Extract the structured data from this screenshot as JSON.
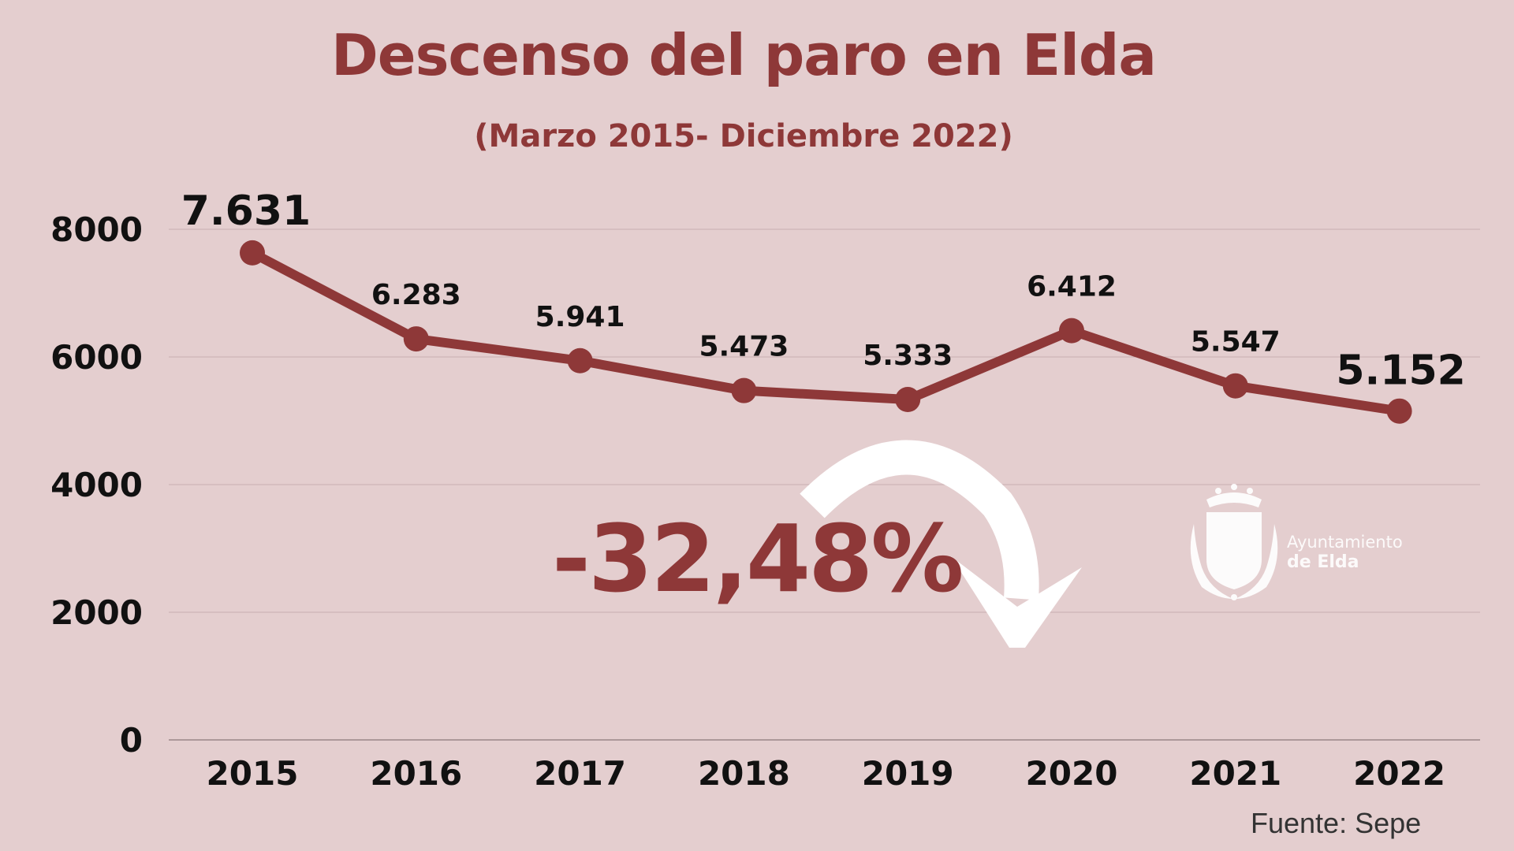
{
  "chart_data": {
    "type": "line",
    "title": "Descenso del paro en Elda",
    "subtitle": "(Marzo 2015- Diciembre 2022)",
    "categories": [
      "2015",
      "2016",
      "2017",
      "2018",
      "2019",
      "2020",
      "2021",
      "2022"
    ],
    "values": [
      7631,
      6283,
      5941,
      5473,
      5333,
      6412,
      5547,
      5152
    ],
    "data_labels": [
      "7.631",
      "6.283",
      "5.941",
      "5.473",
      "5.333",
      "6.412",
      "5.547",
      "5.152"
    ],
    "ylim": [
      0,
      8000
    ],
    "yticks": [
      0,
      2000,
      4000,
      6000,
      8000
    ],
    "grid": true,
    "line_color": "#8e3838",
    "annotation": "-32,48%",
    "source": "Fuente: Sepe"
  },
  "logo": {
    "line1": "Ayuntamiento",
    "line2": "de Elda"
  }
}
